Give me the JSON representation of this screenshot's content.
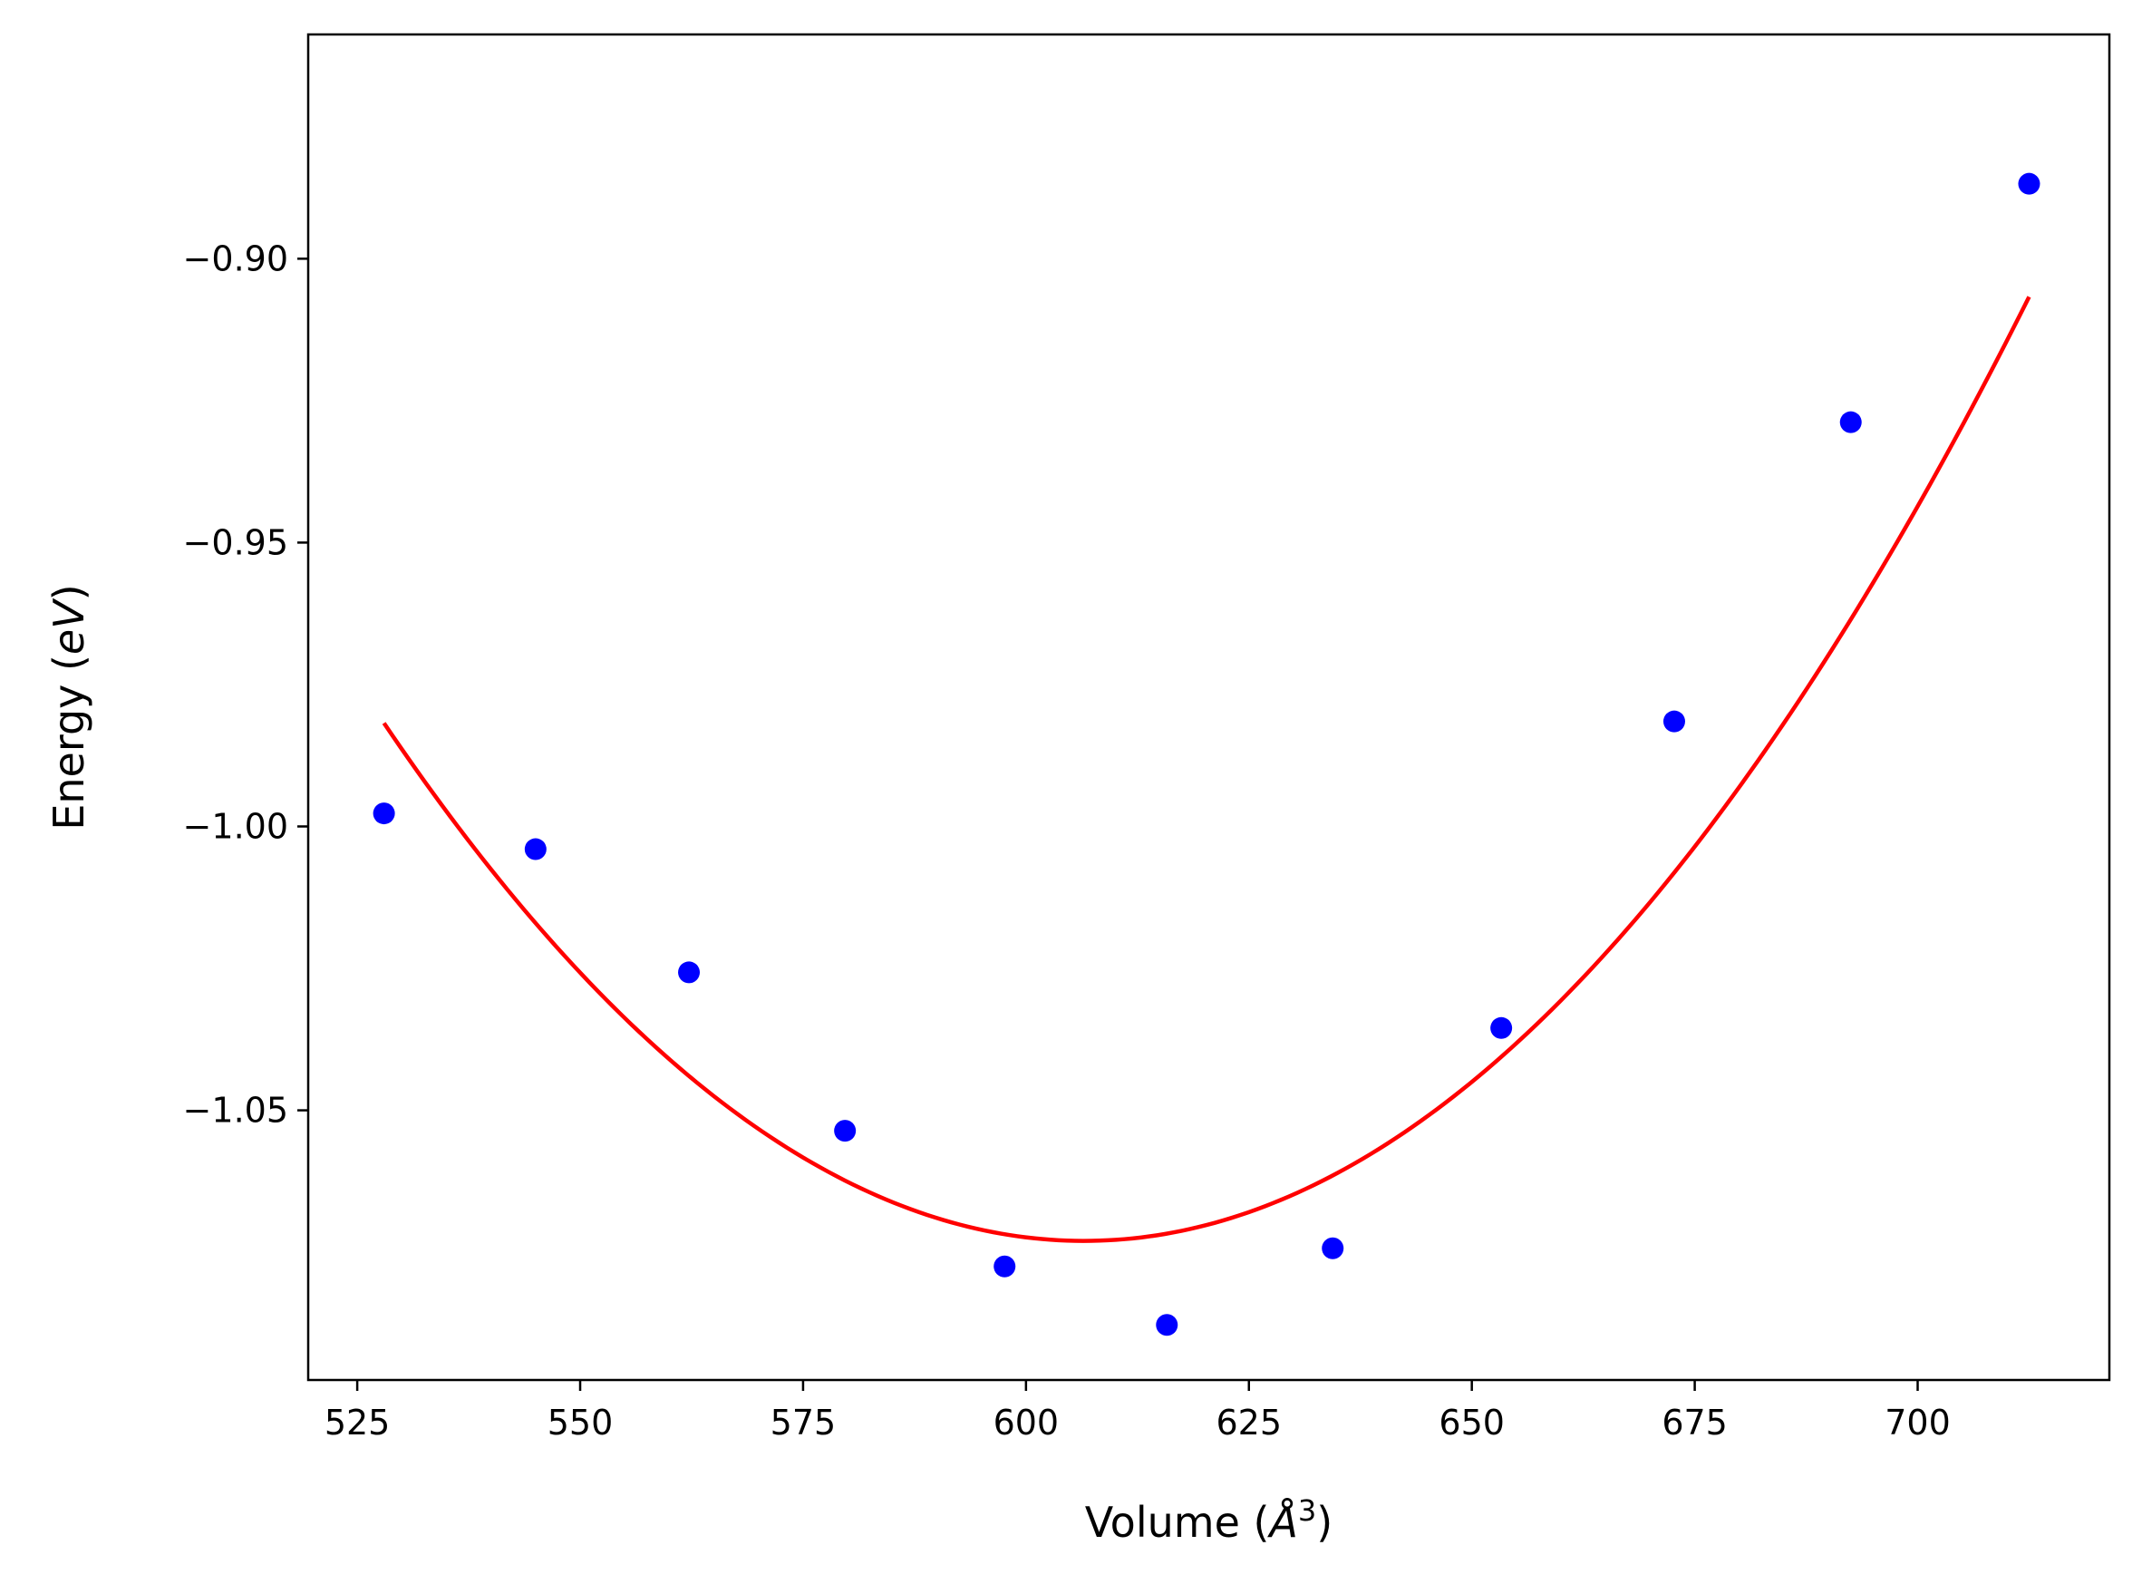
{
  "chart_data": {
    "type": "scatter",
    "xlabel": {
      "prefix": "Volume (",
      "unit": "Å",
      "exponent": "3",
      "suffix": ")"
    },
    "ylabel": {
      "prefix": "Energy (",
      "unit": "eV",
      "suffix": ")"
    },
    "xlim": [
      519.5,
      721.5
    ],
    "ylim": [
      -1.0975,
      -0.8605
    ],
    "x_ticks": [
      525,
      550,
      575,
      600,
      625,
      650,
      675,
      700
    ],
    "x_tick_labels": [
      "525",
      "550",
      "575",
      "600",
      "625",
      "650",
      "675",
      "700"
    ],
    "y_ticks": [
      -0.9,
      -0.95,
      -1.0,
      -1.05
    ],
    "y_tick_labels": [
      "−0.90",
      "−0.95",
      "−1.00",
      "−1.05"
    ],
    "grid": false,
    "legend": "none",
    "series": [
      {
        "kind": "scatter",
        "color": "#0000ff",
        "x": [
          528.0,
          545.0,
          562.2,
          579.7,
          597.6,
          615.8,
          634.4,
          653.3,
          672.7,
          692.5,
          712.5
        ],
        "y": [
          -0.9977,
          -1.004,
          -1.0257,
          -1.0536,
          -1.0775,
          -1.0878,
          -1.0743,
          -1.0355,
          -0.9815,
          -0.9288,
          -0.8868
        ]
      },
      {
        "kind": "line",
        "color": "#ff0000",
        "fit": "quadratic",
        "vertex_x": 606.5,
        "vertex_y": -1.073,
        "curvature": 1.48e-05,
        "x_range": [
          528.0,
          712.5
        ]
      }
    ]
  }
}
